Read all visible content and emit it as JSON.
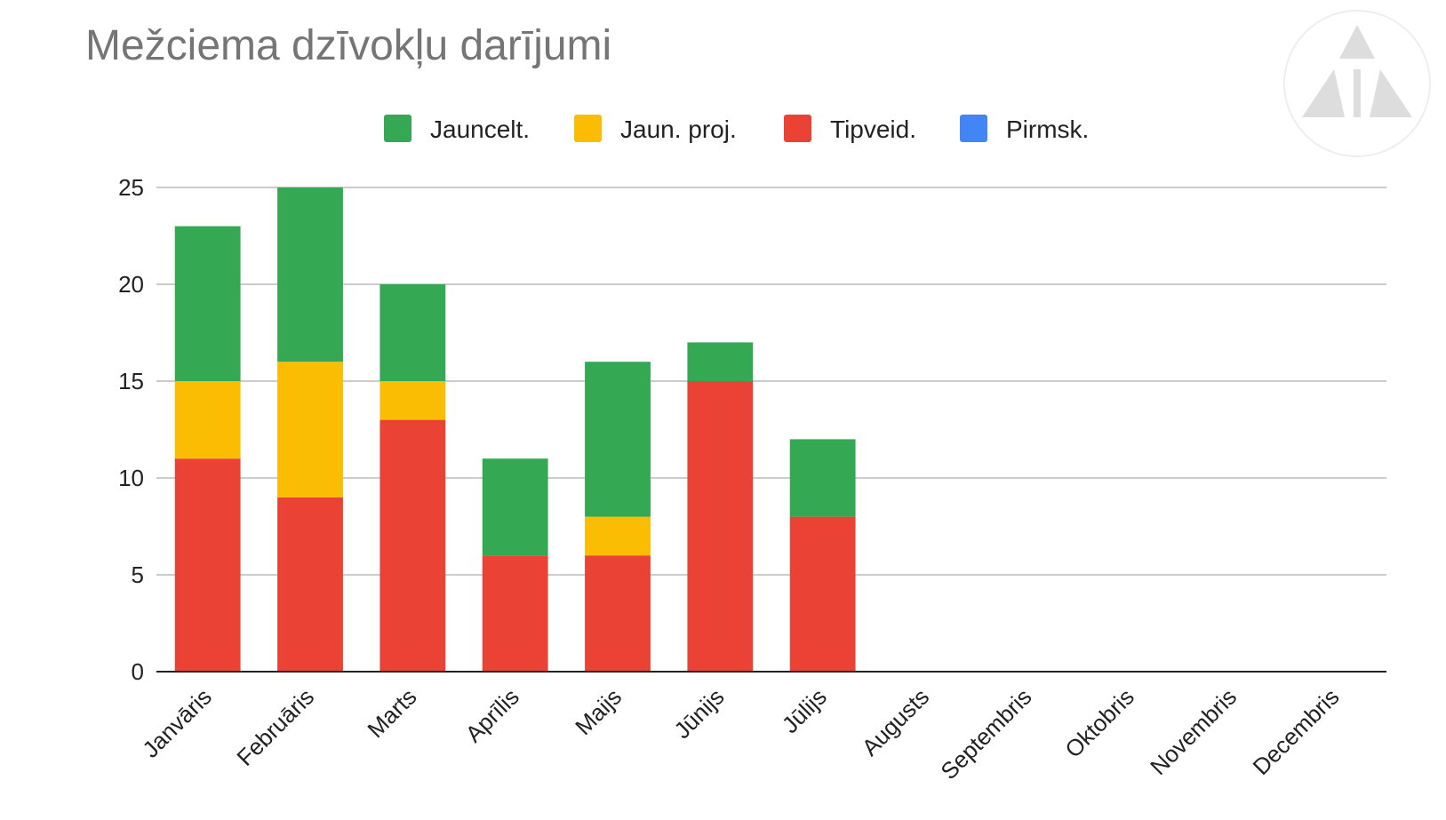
{
  "chart_data": {
    "type": "bar",
    "stacked": true,
    "title": "Mežciema dzīvokļu darījumi",
    "xlabel": "",
    "ylabel": "",
    "ylim": [
      0,
      25
    ],
    "yticks": [
      0,
      5,
      10,
      15,
      20,
      25
    ],
    "grid": true,
    "legend_position": "top",
    "categories": [
      "Janvāris",
      "Februāris",
      "Marts",
      "Aprīlis",
      "Maijs",
      "Jūnijs",
      "Jūlijs",
      "Augusts",
      "Septembris",
      "Oktobris",
      "Novembris",
      "Decembris"
    ],
    "series": [
      {
        "name": "Pirmsk.",
        "color": "#4285f4",
        "values": [
          0,
          0,
          0,
          0,
          0,
          0,
          0,
          0,
          0,
          0,
          0,
          0
        ]
      },
      {
        "name": "Tipveid.",
        "color": "#ea4335",
        "values": [
          11,
          9,
          13,
          6,
          6,
          15,
          8,
          0,
          0,
          0,
          0,
          0
        ]
      },
      {
        "name": "Jaun. proj.",
        "color": "#fbbc04",
        "values": [
          4,
          7,
          2,
          0,
          2,
          0,
          0,
          0,
          0,
          0,
          0,
          0
        ]
      },
      {
        "name": "Jauncelt.",
        "color": "#34a853",
        "values": [
          8,
          9,
          5,
          5,
          8,
          2,
          4,
          0,
          0,
          0,
          0,
          0
        ]
      }
    ],
    "legend_order": [
      "Jauncelt.",
      "Jaun. proj.",
      "Tipveid.",
      "Pirmsk."
    ]
  },
  "logo": {
    "icon": "triangle-logo-icon",
    "color": "#e0e0e0"
  }
}
